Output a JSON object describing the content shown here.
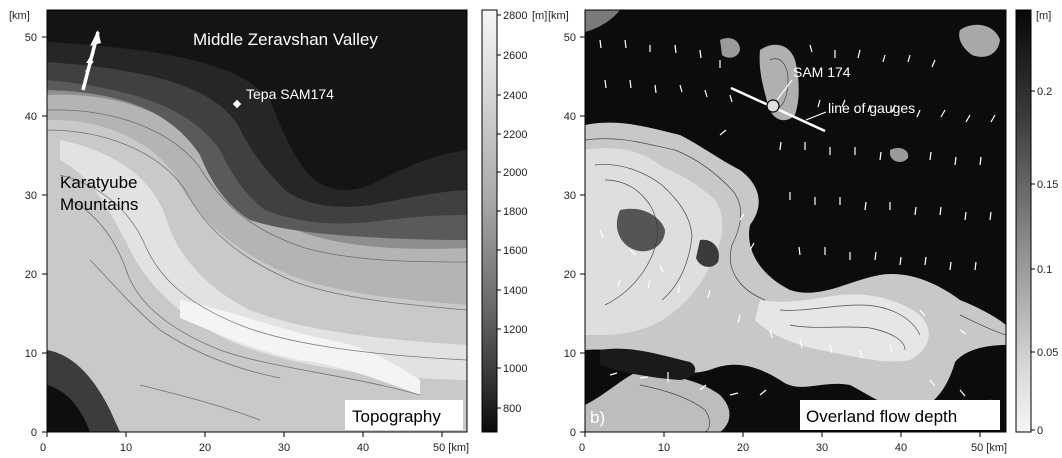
{
  "left_map": {
    "unit_label": "[km]",
    "x_ticks": [
      "0",
      "10",
      "20",
      "30",
      "40",
      "50 [km]"
    ],
    "y_ticks": [
      "0",
      "10",
      "20",
      "30",
      "40",
      "50"
    ],
    "labels": {
      "valley": "Middle Zeravshan Valley",
      "mountains_line1": "Karatyube",
      "mountains_line2": "Mountains",
      "station": "Tepa SAM174",
      "panel_title": "Topography",
      "north": "N"
    },
    "colorbar": {
      "unit": "[m]",
      "ticks": [
        "2800",
        "2600",
        "2400",
        "2200",
        "2000",
        "1800",
        "1600",
        "1400",
        "1200",
        "1000",
        "800"
      ]
    }
  },
  "right_map": {
    "unit_label": "[km]",
    "x_ticks": [
      "0",
      "10",
      "20",
      "30",
      "40",
      "50 [km]"
    ],
    "y_ticks": [
      "0",
      "10",
      "20",
      "30",
      "40",
      "50"
    ],
    "labels": {
      "station": "SAM 174",
      "gauges": "line of gauges",
      "panel_letter": "b)",
      "panel_title": "Overland flow depth"
    },
    "colorbar": {
      "unit": "[m]",
      "ticks": [
        "0.2",
        "0.15",
        "0.1",
        "0.05",
        "0"
      ]
    }
  },
  "colors": {
    "dark": "#111111",
    "mid_gray": "#777777",
    "light_gray": "#d8d8d8",
    "white": "#ffffff"
  }
}
